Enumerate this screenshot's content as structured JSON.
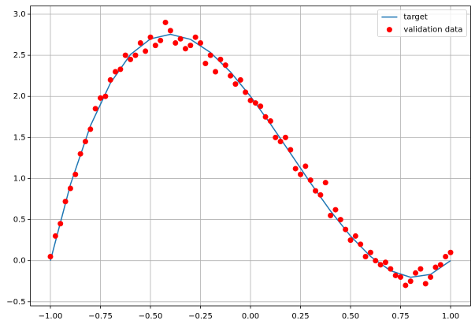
{
  "chart_data": {
    "type": "scatter",
    "xlim": [
      -1.1,
      1.1
    ],
    "ylim": [
      -0.55,
      3.1
    ],
    "xticks": [
      {
        "value": -1,
        "label": "−1.00"
      },
      {
        "value": -0.75,
        "label": "−0.75"
      },
      {
        "value": -0.5,
        "label": "−0.50"
      },
      {
        "value": -0.25,
        "label": "−0.25"
      },
      {
        "value": 0,
        "label": "0.00"
      },
      {
        "value": 0.25,
        "label": "0.25"
      },
      {
        "value": 0.5,
        "label": "0.50"
      },
      {
        "value": 0.75,
        "label": "0.75"
      },
      {
        "value": 1,
        "label": "1.00"
      }
    ],
    "yticks": [
      {
        "value": -0.5,
        "label": "−0.5"
      },
      {
        "value": 0,
        "label": "0.0"
      },
      {
        "value": 0.5,
        "label": "0.5"
      },
      {
        "value": 1,
        "label": "1.0"
      },
      {
        "value": 1.5,
        "label": "1.5"
      },
      {
        "value": 2,
        "label": "2.0"
      },
      {
        "value": 2.5,
        "label": "2.5"
      },
      {
        "value": 3,
        "label": "3.0"
      }
    ],
    "grid": true,
    "legend": "upper right",
    "series": [
      {
        "name": "target",
        "type": "line",
        "color": "#1f77b4",
        "x": [
          -1,
          -0.9,
          -0.8,
          -0.7,
          -0.6,
          -0.5,
          -0.4,
          -0.3,
          -0.2,
          -0.1,
          0,
          0.1,
          0.2,
          0.3,
          0.4,
          0.5,
          0.6,
          0.7,
          0.8,
          0.9,
          1
        ],
        "values": [
          0,
          0.927,
          1.642,
          2.162,
          2.509,
          2.7,
          2.755,
          2.694,
          2.534,
          2.297,
          2,
          1.663,
          1.306,
          0.946,
          0.605,
          0.3,
          0.051,
          -0.122,
          -0.202,
          -0.167,
          0
        ]
      },
      {
        "name": "validation data",
        "type": "scatter",
        "color": "#ff0000",
        "x": [
          -1,
          -0.95,
          -0.9,
          -0.85,
          -0.8,
          -0.75,
          -0.7,
          -0.65,
          -0.6,
          -0.55,
          -0.5,
          -0.45,
          -0.4,
          -0.35,
          -0.3,
          -0.25,
          -0.2,
          -0.15,
          -0.1,
          -0.05,
          0,
          0.05,
          0.1,
          0.15,
          0.2,
          0.25,
          0.3,
          0.35,
          0.4,
          0.45,
          0.5,
          0.55,
          0.6,
          0.65,
          0.7,
          0.75,
          0.8,
          0.85,
          0.9,
          0.95,
          1,
          -0.975,
          -0.925,
          -0.875,
          -0.825,
          -0.775,
          -0.725,
          -0.675,
          -0.625,
          -0.575,
          -0.525,
          -0.475,
          -0.425,
          -0.375,
          -0.325,
          -0.275,
          -0.225,
          -0.175,
          -0.125,
          -0.075,
          -0.025,
          0.025,
          0.075,
          0.125,
          0.175,
          0.225,
          0.275,
          0.325,
          0.375,
          0.425,
          0.475,
          0.525,
          0.575,
          0.625,
          0.675,
          0.725,
          0.775,
          0.825,
          0.875,
          0.925,
          0.975
        ],
        "values": [
          0.05,
          0.45,
          0.88,
          1.3,
          1.6,
          1.98,
          2.2,
          2.33,
          2.45,
          2.65,
          2.72,
          2.68,
          2.8,
          2.7,
          2.62,
          2.65,
          2.5,
          2.45,
          2.25,
          2.2,
          1.95,
          1.88,
          1.7,
          1.45,
          1.35,
          1.05,
          0.98,
          0.8,
          0.55,
          0.5,
          0.25,
          0.2,
          0.1,
          -0.05,
          -0.1,
          -0.2,
          -0.25,
          -0.1,
          -0.2,
          -0.05,
          0.1,
          0.3,
          0.72,
          1.05,
          1.45,
          1.85,
          2.0,
          2.3,
          2.5,
          2.5,
          2.55,
          2.62,
          2.9,
          2.65,
          2.58,
          2.72,
          2.4,
          2.3,
          2.38,
          2.15,
          2.05,
          1.92,
          1.75,
          1.5,
          1.5,
          1.12,
          1.15,
          0.85,
          0.95,
          0.62,
          0.38,
          0.3,
          0.05,
          0.0,
          -0.02,
          -0.18,
          -0.3,
          -0.15,
          -0.28,
          -0.08,
          0.05
        ]
      }
    ]
  }
}
